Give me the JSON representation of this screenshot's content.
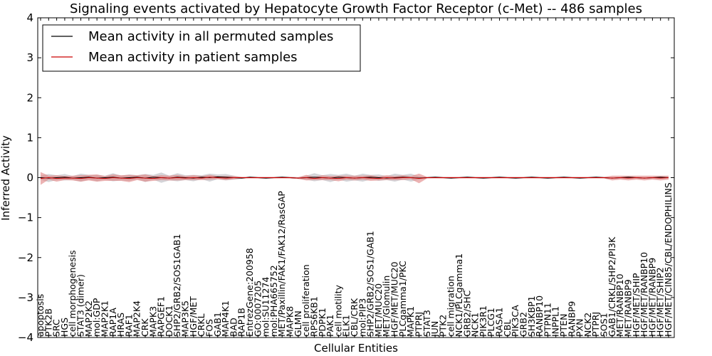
{
  "chart_data": {
    "type": "line",
    "title": "Signaling events activated by Hepatocyte Growth Factor Receptor (c-Met) -- 486 samples",
    "xlabel": "Cellular Entities",
    "ylabel": "Inferred Activity",
    "ylim": [
      -4,
      4
    ],
    "yticks": [
      "−4",
      "−3",
      "−2",
      "−1",
      "0",
      "1",
      "2",
      "3",
      "4"
    ],
    "ytick_values": [
      -4,
      -3,
      -2,
      -1,
      0,
      1,
      2,
      3,
      4
    ],
    "legend_position": "top-left",
    "colors": {
      "permuted_line": "#000000",
      "patient_line": "#cc0000",
      "patient_band": "#e08080",
      "permuted_band": "#b0b0b8"
    },
    "categories": [
      "apoptosis",
      "PTK2B",
      "SRC",
      "HGS",
      "cell morphogenesis",
      "STAT3 (dimer)",
      "MAP2K2",
      "mol:GDP",
      "MAP2K1",
      "RAP1A",
      "HRAS",
      "RAF1",
      "MAP2K4",
      "CRK",
      "MAPK3",
      "RAPGEF1",
      "DOCK1",
      "SHP2/GRB2/SOS1GAB1",
      "MAP3K5",
      "HGF/MET",
      "CRKL",
      "FOS",
      "GAB1",
      "MAP4K1",
      "BAD",
      "RAP1B",
      "EntrezGene:200958",
      "GO:0007205",
      "mol:SU11274",
      "mol:PHA665752",
      "MET/Paxillin/FAK1/FAK12/RasGAP",
      "MAPK8",
      "GLMN",
      "cell proliferation",
      "RPS6KB1",
      "PDPK1",
      "PAK1",
      "cell motility",
      "ELK1",
      "CBL/CRK",
      "mol:PIP3",
      "SHP2/GRB2/SOS1/GAB1",
      "MET/MUC20",
      "MET/Glomulin",
      "HGF/MET/MUC20",
      "PLCgamma1/PKC",
      "MAPK1",
      "PTPRJ",
      "STAT3",
      "JUN",
      "PTK2",
      "cell migration",
      "NCK1/PLCgamma1",
      "GRB2/SHC",
      "NCK1",
      "PIK3R1",
      "PLCG1",
      "RASA1",
      "CBL",
      "PIK3CA",
      "GRB2",
      "SH3KBP1",
      "RANBP10",
      "PTPN11",
      "INPPL1",
      "PTEN",
      "RANBP9",
      "PXN",
      "NCK2",
      "PTPRJ",
      "SOS1",
      "GAB1/CRKL/SHP2/PI3K",
      "MET/RANBP10",
      "MET/RANBP9",
      "HGF/MET/SHIP",
      "HGF/MET/RANBP10",
      "HGF/MET/RANBP9",
      "HGF/MET/SHIP2",
      "HGF/MET/CIN85/CBL/ENDOPHILINS"
    ],
    "series": [
      {
        "name": "Mean activity in all permuted samples",
        "values": [
          0.0,
          -0.01,
          0.0,
          0.01,
          -0.01,
          0.0,
          0.01,
          -0.01,
          0.0,
          0.01,
          -0.01,
          0.0,
          0.01,
          -0.01,
          0.01,
          0.0,
          -0.01,
          0.01,
          0.0,
          -0.01,
          0.01,
          0.0,
          0.02,
          0.01,
          0.0,
          -0.01,
          0.01,
          0.0,
          -0.01,
          0.0,
          0.01,
          0.0,
          -0.01,
          0.0,
          0.01,
          0.0,
          -0.01,
          0.01,
          0.0,
          -0.01,
          0.0,
          0.01,
          0.0,
          -0.01,
          0.0,
          0.01,
          0.0,
          -0.01,
          0.0,
          0.01,
          0.0,
          -0.01,
          0.0,
          0.01,
          0.0,
          -0.01,
          0.0,
          0.01,
          0.0,
          -0.01,
          0.0,
          0.01,
          0.0,
          -0.01,
          0.0,
          0.01,
          0.0,
          -0.01,
          0.0,
          0.01,
          0.0,
          -0.01,
          0.0,
          0.01,
          0.0,
          -0.01,
          0.0,
          0.01,
          0.0
        ],
        "band": [
          0.05,
          0.1,
          0.06,
          0.08,
          0.05,
          0.1,
          0.06,
          0.08,
          0.05,
          0.1,
          0.06,
          0.08,
          0.05,
          0.1,
          0.06,
          0.13,
          0.06,
          0.1,
          0.06,
          0.08,
          0.05,
          0.1,
          0.06,
          0.08,
          0.05,
          0.02,
          0.02,
          0.02,
          0.02,
          0.02,
          0.02,
          0.02,
          0.02,
          0.05,
          0.1,
          0.06,
          0.1,
          0.06,
          0.1,
          0.06,
          0.1,
          0.06,
          0.08,
          0.05,
          0.1,
          0.06,
          0.1,
          0.04,
          0.02,
          0.02,
          0.02,
          0.02,
          0.02,
          0.02,
          0.02,
          0.02,
          0.02,
          0.02,
          0.02,
          0.02,
          0.02,
          0.02,
          0.02,
          0.02,
          0.02,
          0.02,
          0.02,
          0.02,
          0.02,
          0.02,
          0.02,
          0.02,
          0.02,
          0.02,
          0.02,
          0.02,
          0.02,
          0.02,
          0.02
        ]
      },
      {
        "name": "Mean activity in patient samples",
        "values": [
          -0.02,
          0.0,
          -0.02,
          -0.01,
          -0.01,
          -0.02,
          0.0,
          -0.01,
          -0.02,
          0.0,
          -0.01,
          -0.02,
          0.0,
          -0.01,
          -0.02,
          0.0,
          -0.01,
          0.0,
          -0.01,
          0.0,
          -0.01,
          0.01,
          0.0,
          -0.01,
          0.0,
          0.0,
          0.0,
          0.0,
          0.0,
          0.0,
          0.0,
          0.0,
          -0.01,
          0.0,
          -0.02,
          0.0,
          -0.01,
          -0.02,
          0.0,
          -0.01,
          0.0,
          -0.01,
          -0.02,
          0.0,
          -0.01,
          0.0,
          0.0,
          -0.02,
          0.0,
          0.0,
          0.0,
          0.0,
          0.0,
          0.0,
          0.0,
          0.0,
          0.0,
          0.0,
          0.0,
          0.0,
          0.0,
          0.0,
          0.0,
          0.0,
          0.0,
          0.0,
          0.0,
          0.0,
          0.0,
          0.0,
          0.0,
          -0.01,
          0.0,
          -0.01,
          0.0,
          -0.01,
          0.0,
          -0.01,
          0.0
        ],
        "band": [
          0.16,
          0.05,
          0.08,
          0.05,
          0.06,
          0.08,
          0.07,
          0.09,
          0.06,
          0.08,
          0.07,
          0.09,
          0.06,
          0.09,
          0.06,
          0.06,
          0.06,
          0.07,
          0.05,
          0.06,
          0.05,
          0.06,
          0.04,
          0.05,
          0.04,
          0.02,
          0.02,
          0.02,
          0.02,
          0.02,
          0.02,
          0.02,
          0.02,
          0.07,
          0.04,
          0.06,
          0.05,
          0.07,
          0.05,
          0.06,
          0.05,
          0.07,
          0.05,
          0.06,
          0.05,
          0.06,
          0.04,
          0.12,
          0.02,
          0.02,
          0.02,
          0.02,
          0.02,
          0.02,
          0.02,
          0.02,
          0.02,
          0.02,
          0.02,
          0.02,
          0.02,
          0.02,
          0.02,
          0.02,
          0.02,
          0.02,
          0.02,
          0.02,
          0.02,
          0.02,
          0.02,
          0.06,
          0.05,
          0.06,
          0.05,
          0.06,
          0.05,
          0.06,
          0.05
        ]
      }
    ]
  }
}
